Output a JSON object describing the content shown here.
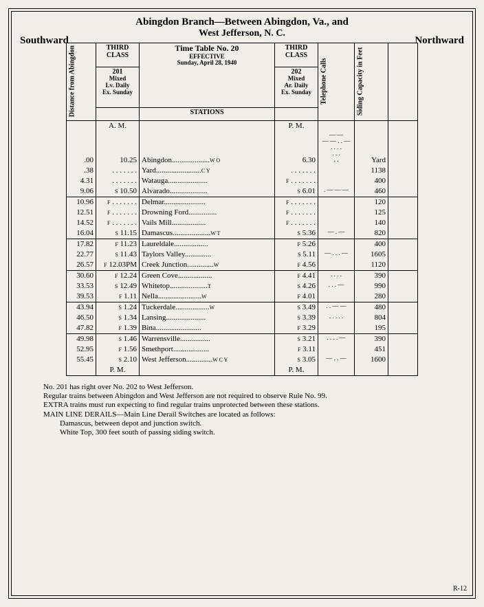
{
  "title_line1": "Abingdon Branch—Between Abingdon, Va., and",
  "title_line2": "West Jefferson, N. C.",
  "dir_left": "Southward",
  "dir_right": "Northward",
  "headers": {
    "distance": "Distance from Abingdon",
    "class": "THIRD CLASS",
    "train201_no": "201",
    "train201_sub": "Mixed\nLv. Daily\nEx. Sunday",
    "timetable": "Time Table No. 20",
    "effective": "EFFECTIVE",
    "date": "Sunday, April 28, 1940",
    "stations": "STATIONS",
    "train202_no": "202",
    "train202_sub": "Mixed\nAr. Daily\nEx. Sunday",
    "telephone": "Telephone Calls",
    "siding": "Siding Capacity in Feet"
  },
  "am": "A. M.",
  "pm": "P. M.",
  "rows": [
    {
      "g": 0,
      "dist": ".00",
      "f1": "",
      "t1": "10.25",
      "station": "Abingdon",
      "sfx": "W O",
      "f2": "",
      "t2": "6.30",
      "tel": "— —\n— — . . —\n. . . .\n. . .\n. .",
      "sid": "Yard"
    },
    {
      "g": 0,
      "dist": ".38",
      "f1": "",
      "t1": ". . . . . . .",
      "station": "Yard",
      "sfx": "C Y",
      "f2": "",
      "t2": ". . . . . . .",
      "tel": "",
      "sid": "1138"
    },
    {
      "g": 0,
      "dist": "4.31",
      "f1": "",
      "t1": ". . . . . . .",
      "station": "Watauga",
      "sfx": "",
      "f2": "F",
      "t2": ". . . . . . .",
      "tel": "",
      "sid": "400"
    },
    {
      "g": 0,
      "dist": "9.06",
      "f1": "S",
      "t1": "10.50",
      "station": "Alvarado",
      "sfx": "",
      "f2": "S",
      "t2": "6.01",
      "tel": ". — — —",
      "sid": "460"
    },
    {
      "g": 1,
      "dist": "10.96",
      "f1": "F",
      "t1": ". . . . . . .",
      "station": "Delmar",
      "sfx": "",
      "f2": "F",
      "t2": ". . . . . . .",
      "tel": "",
      "sid": "120"
    },
    {
      "g": 1,
      "dist": "12.51",
      "f1": "F",
      "t1": ". . . . . . .",
      "station": "Drowning Ford",
      "sfx": "",
      "f2": "F",
      "t2": ". . . . . . .",
      "tel": "",
      "sid": "125"
    },
    {
      "g": 1,
      "dist": "14.52",
      "f1": "F",
      "t1": ". . . . . . .",
      "station": "Vails Mill",
      "sfx": "",
      "f2": "F",
      "t2": ". . . . . . .",
      "tel": "",
      "sid": "140"
    },
    {
      "g": 1,
      "dist": "16.04",
      "f1": "S",
      "t1": "11.15",
      "station": "Damascus",
      "sfx": "W T",
      "f2": "S",
      "t2": "5.36",
      "tel": "— . —",
      "sid": "820"
    },
    {
      "g": 2,
      "dist": "17.82",
      "f1": "F",
      "t1": "11.23",
      "station": "Laureldale",
      "sfx": "",
      "f2": "F",
      "t2": "5.26",
      "tel": "",
      "sid": "400"
    },
    {
      "g": 2,
      "dist": "22.77",
      "f1": "S",
      "t1": "11.43",
      "station": "Taylors Valley",
      "sfx": "",
      "f2": "S",
      "t2": "5.11",
      "tel": "— . . . —",
      "sid": "1605"
    },
    {
      "g": 2,
      "dist": "26.57",
      "f1": "F",
      "t1": "12.03PM",
      "station": "Creek Junction",
      "sfx": "W",
      "f2": "F",
      "t2": "4.56",
      "tel": "",
      "sid": "1120"
    },
    {
      "g": 3,
      "dist": "30.60",
      "f1": "F",
      "t1": "12.24",
      "station": "Green Cove",
      "sfx": "",
      "f2": "F",
      "t2": "4.41",
      "tel": ". . . .",
      "sid": "390"
    },
    {
      "g": 3,
      "dist": "33.53",
      "f1": "S",
      "t1": "12.49",
      "station": "Whitetop",
      "sfx": "T",
      "f2": "S",
      "t2": "4.26",
      "tel": ". . . —",
      "sid": "990"
    },
    {
      "g": 3,
      "dist": "39.53",
      "f1": "F",
      "t1": "1.11",
      "station": "Nella",
      "sfx": "W",
      "f2": "F",
      "t2": "4.01",
      "tel": "",
      "sid": "280"
    },
    {
      "g": 4,
      "dist": "43.94",
      "f1": "S",
      "t1": "1.24",
      "station": "Tuckerdale",
      "sfx": "W",
      "f2": "S",
      "t2": "3.49",
      "tel": ". . — —",
      "sid": "480"
    },
    {
      "g": 4,
      "dist": "46.50",
      "f1": "S",
      "t1": "1.34",
      "station": "Lansing",
      "sfx": "",
      "f2": "S",
      "t2": "3.39",
      "tel": ". . . . .",
      "sid": "804"
    },
    {
      "g": 4,
      "dist": "47.82",
      "f1": "F",
      "t1": "1.39",
      "station": "Bina",
      "sfx": "",
      "f2": "F",
      "t2": "3.29",
      "tel": "",
      "sid": "195"
    },
    {
      "g": 5,
      "dist": "49.98",
      "f1": "S",
      "t1": "1.46",
      "station": "Warrensville",
      "sfx": "",
      "f2": "S",
      "t2": "3.21",
      "tel": ". . . . —",
      "sid": "390"
    },
    {
      "g": 5,
      "dist": "52.95",
      "f1": "F",
      "t1": "1.56",
      "station": "Smethport",
      "sfx": "",
      "f2": "F",
      "t2": "3.11",
      "tel": "",
      "sid": "451"
    },
    {
      "g": 5,
      "dist": "55.45",
      "f1": "S",
      "t1": "2.10",
      "station": "West Jefferson",
      "sfx": "W C Y",
      "f2": "S",
      "t2": "3.05",
      "tel": "— . . —",
      "sid": "1600"
    }
  ],
  "notes": [
    "No. 201 has right over No. 202 to West Jefferson.",
    "Regular trains between Abingdon and West Jefferson are not required to observe Rule No. 99.",
    "EXTRA trains must run expecting to find regular trains unprotected between these stations.",
    "MAIN LINE DERAILS—Main Line Derail Switches are located as follows:",
    "Damascus, between depot and junction switch.",
    "White Top, 300 feet south of passing siding switch."
  ],
  "page_num": "R-12"
}
